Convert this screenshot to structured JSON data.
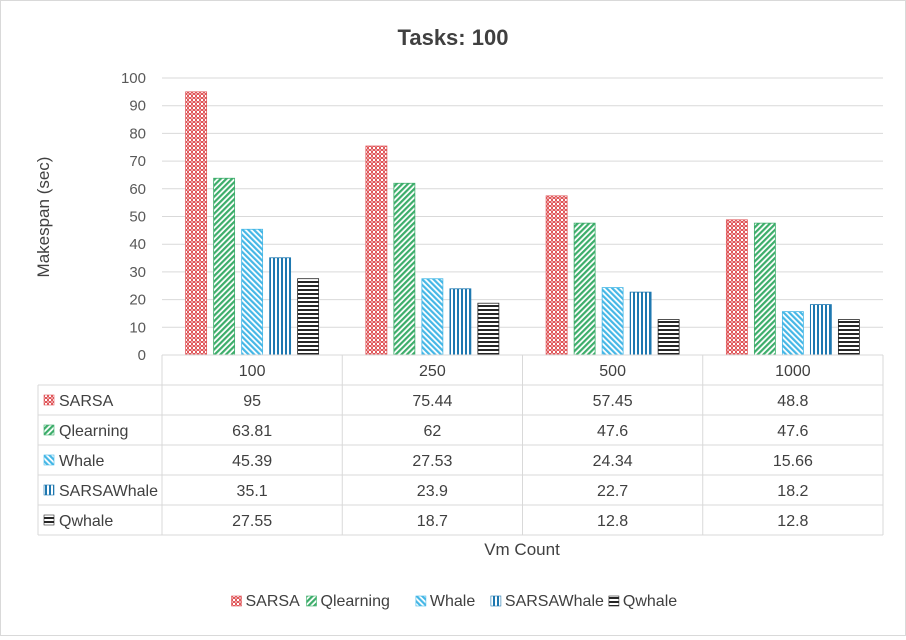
{
  "chart_data": {
    "type": "bar",
    "title": "Tasks: 100",
    "xlabel": "Vm Count",
    "ylabel": "Makespan (sec)",
    "ylim": [
      0,
      100
    ],
    "yticks": [
      0,
      10,
      20,
      30,
      40,
      50,
      60,
      70,
      80,
      90,
      100
    ],
    "grid": true,
    "legend_position": "bottom",
    "categories": [
      "100",
      "250",
      "500",
      "1000"
    ],
    "series": [
      {
        "name": "SARSA",
        "color": "#e0585b",
        "pattern": "checker",
        "values": [
          95,
          75.44,
          57.45,
          48.8
        ]
      },
      {
        "name": "Qlearning",
        "color": "#3cad6a",
        "pattern": "diagonal",
        "values": [
          63.81,
          62,
          47.6,
          47.6
        ]
      },
      {
        "name": "Whale",
        "color": "#45b7e6",
        "pattern": "diagonal-reverse",
        "values": [
          45.39,
          27.53,
          24.34,
          15.66
        ]
      },
      {
        "name": "SARSAWhale",
        "color": "#1e78b0",
        "pattern": "vertical",
        "values": [
          35.1,
          23.9,
          22.7,
          18.2
        ]
      },
      {
        "name": "Qwhale",
        "color": "#262626",
        "pattern": "horizontal",
        "values": [
          27.55,
          18.7,
          12.8,
          12.8
        ]
      }
    ]
  }
}
